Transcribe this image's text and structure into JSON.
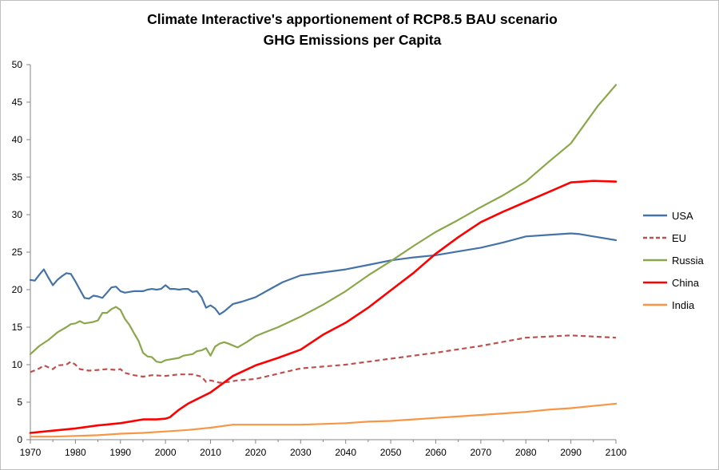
{
  "chart_data": {
    "type": "line",
    "title": "Climate Interactive's apportionement of RCP8.5 BAU scenario",
    "subtitle": "GHG Emissions per Capita",
    "xlabel": "",
    "ylabel": "",
    "xlim": [
      1970,
      2100
    ],
    "ylim": [
      0,
      50
    ],
    "xticks": [
      1970,
      1980,
      1990,
      2000,
      2010,
      2020,
      2030,
      2040,
      2050,
      2060,
      2070,
      2080,
      2090,
      2100
    ],
    "yticks": [
      0,
      5,
      10,
      15,
      20,
      25,
      30,
      35,
      40,
      45,
      50
    ],
    "grid": false,
    "legend_position": "right",
    "series": [
      {
        "name": "USA",
        "color": "#4572a7",
        "style": "solid",
        "points": [
          [
            1970,
            21.3
          ],
          [
            1971,
            21.2
          ],
          [
            1972,
            22
          ],
          [
            1973,
            22.7
          ],
          [
            1974,
            21.6
          ],
          [
            1975,
            20.6
          ],
          [
            1976,
            21.3
          ],
          [
            1977,
            21.8
          ],
          [
            1978,
            22.2
          ],
          [
            1979,
            22.1
          ],
          [
            1980,
            21.1
          ],
          [
            1981,
            20
          ],
          [
            1982,
            18.9
          ],
          [
            1983,
            18.8
          ],
          [
            1984,
            19.2
          ],
          [
            1985,
            19.1
          ],
          [
            1986,
            18.9
          ],
          [
            1987,
            19.6
          ],
          [
            1988,
            20.3
          ],
          [
            1989,
            20.4
          ],
          [
            1990,
            19.8
          ],
          [
            1991,
            19.6
          ],
          [
            1992,
            19.7
          ],
          [
            1993,
            19.8
          ],
          [
            1994,
            19.8
          ],
          [
            1995,
            19.8
          ],
          [
            1996,
            20
          ],
          [
            1997,
            20.1
          ],
          [
            1998,
            20
          ],
          [
            1999,
            20.1
          ],
          [
            2000,
            20.6
          ],
          [
            2001,
            20.1
          ],
          [
            2002,
            20.1
          ],
          [
            2003,
            20
          ],
          [
            2004,
            20.1
          ],
          [
            2005,
            20.1
          ],
          [
            2006,
            19.7
          ],
          [
            2007,
            19.8
          ],
          [
            2008,
            19
          ],
          [
            2009,
            17.6
          ],
          [
            2010,
            17.9
          ],
          [
            2011,
            17.5
          ],
          [
            2012,
            16.7
          ],
          [
            2013,
            17.1
          ],
          [
            2014,
            17.6
          ],
          [
            2015,
            18.1
          ],
          [
            2017,
            18.4
          ],
          [
            2020,
            19
          ],
          [
            2023,
            20
          ],
          [
            2026,
            21
          ],
          [
            2030,
            21.9
          ],
          [
            2035,
            22.3
          ],
          [
            2040,
            22.7
          ],
          [
            2045,
            23.3
          ],
          [
            2050,
            23.9
          ],
          [
            2055,
            24.3
          ],
          [
            2060,
            24.6
          ],
          [
            2065,
            25.1
          ],
          [
            2070,
            25.6
          ],
          [
            2075,
            26.3
          ],
          [
            2080,
            27.1
          ],
          [
            2085,
            27.3
          ],
          [
            2090,
            27.5
          ],
          [
            2092,
            27.4
          ],
          [
            2095,
            27.1
          ],
          [
            2100,
            26.6
          ]
        ]
      },
      {
        "name": "EU",
        "color": "#c0504d",
        "style": "dashed",
        "points": [
          [
            1970,
            9
          ],
          [
            1972,
            9.5
          ],
          [
            1973,
            9.9
          ],
          [
            1975,
            9.4
          ],
          [
            1976,
            9.9
          ],
          [
            1978,
            10
          ],
          [
            1979,
            10.4
          ],
          [
            1980,
            10
          ],
          [
            1981,
            9.4
          ],
          [
            1983,
            9.2
          ],
          [
            1985,
            9.3
          ],
          [
            1987,
            9.4
          ],
          [
            1989,
            9.3
          ],
          [
            1990,
            9.4
          ],
          [
            1991,
            8.9
          ],
          [
            1993,
            8.6
          ],
          [
            1995,
            8.4
          ],
          [
            1997,
            8.6
          ],
          [
            2000,
            8.5
          ],
          [
            2003,
            8.7
          ],
          [
            2006,
            8.7
          ],
          [
            2008,
            8.4
          ],
          [
            2009,
            7.7
          ],
          [
            2010,
            7.9
          ],
          [
            2012,
            7.6
          ],
          [
            2014,
            7.7
          ],
          [
            2016,
            7.9
          ],
          [
            2020,
            8.1
          ],
          [
            2025,
            8.8
          ],
          [
            2030,
            9.5
          ],
          [
            2040,
            10
          ],
          [
            2050,
            10.8
          ],
          [
            2060,
            11.6
          ],
          [
            2070,
            12.5
          ],
          [
            2080,
            13.6
          ],
          [
            2090,
            13.9
          ],
          [
            2100,
            13.6
          ]
        ]
      },
      {
        "name": "Russia",
        "color": "#8aa84b",
        "style": "solid",
        "points": [
          [
            1970,
            11.4
          ],
          [
            1972,
            12.5
          ],
          [
            1974,
            13.3
          ],
          [
            1976,
            14.3
          ],
          [
            1978,
            15
          ],
          [
            1979,
            15.4
          ],
          [
            1980,
            15.5
          ],
          [
            1981,
            15.8
          ],
          [
            1982,
            15.5
          ],
          [
            1984,
            15.7
          ],
          [
            1985,
            15.9
          ],
          [
            1986,
            16.9
          ],
          [
            1987,
            16.9
          ],
          [
            1988,
            17.4
          ],
          [
            1989,
            17.7
          ],
          [
            1990,
            17.3
          ],
          [
            1991,
            16.1
          ],
          [
            1992,
            15.3
          ],
          [
            1993,
            14.2
          ],
          [
            1994,
            13.2
          ],
          [
            1995,
            11.6
          ],
          [
            1996,
            11.1
          ],
          [
            1997,
            11
          ],
          [
            1998,
            10.4
          ],
          [
            1999,
            10.3
          ],
          [
            2000,
            10.6
          ],
          [
            2001,
            10.7
          ],
          [
            2003,
            10.9
          ],
          [
            2004,
            11.2
          ],
          [
            2006,
            11.4
          ],
          [
            2007,
            11.8
          ],
          [
            2008,
            11.9
          ],
          [
            2009,
            12.2
          ],
          [
            2010,
            11.2
          ],
          [
            2011,
            12.4
          ],
          [
            2012,
            12.8
          ],
          [
            2013,
            13
          ],
          [
            2014,
            12.8
          ],
          [
            2016,
            12.3
          ],
          [
            2018,
            13
          ],
          [
            2020,
            13.8
          ],
          [
            2022,
            14.3
          ],
          [
            2025,
            15
          ],
          [
            2030,
            16.4
          ],
          [
            2035,
            18
          ],
          [
            2040,
            19.8
          ],
          [
            2045,
            21.9
          ],
          [
            2050,
            23.8
          ],
          [
            2055,
            25.8
          ],
          [
            2060,
            27.7
          ],
          [
            2065,
            29.3
          ],
          [
            2070,
            31
          ],
          [
            2075,
            32.6
          ],
          [
            2080,
            34.4
          ],
          [
            2085,
            37
          ],
          [
            2090,
            39.5
          ],
          [
            2093,
            42
          ],
          [
            2096,
            44.5
          ],
          [
            2100,
            47.3
          ]
        ]
      },
      {
        "name": "China",
        "color": "#ff0000",
        "style": "solid",
        "points": [
          [
            1970,
            0.9
          ],
          [
            1975,
            1.2
          ],
          [
            1980,
            1.5
          ],
          [
            1985,
            1.9
          ],
          [
            1990,
            2.2
          ],
          [
            1995,
            2.7
          ],
          [
            1998,
            2.7
          ],
          [
            2000,
            2.8
          ],
          [
            2001,
            3
          ],
          [
            2003,
            4
          ],
          [
            2005,
            4.8
          ],
          [
            2007,
            5.4
          ],
          [
            2010,
            6.3
          ],
          [
            2015,
            8.5
          ],
          [
            2020,
            9.9
          ],
          [
            2025,
            10.9
          ],
          [
            2030,
            12
          ],
          [
            2035,
            14
          ],
          [
            2040,
            15.6
          ],
          [
            2045,
            17.6
          ],
          [
            2050,
            19.9
          ],
          [
            2055,
            22.2
          ],
          [
            2060,
            24.8
          ],
          [
            2065,
            27
          ],
          [
            2070,
            29
          ],
          [
            2075,
            30.4
          ],
          [
            2080,
            31.7
          ],
          [
            2085,
            33
          ],
          [
            2090,
            34.3
          ],
          [
            2095,
            34.5
          ],
          [
            2100,
            34.4
          ]
        ]
      },
      {
        "name": "India",
        "color": "#f79646",
        "style": "solid",
        "points": [
          [
            1970,
            0.4
          ],
          [
            1975,
            0.4
          ],
          [
            1980,
            0.5
          ],
          [
            1985,
            0.6
          ],
          [
            1990,
            0.8
          ],
          [
            1995,
            0.9
          ],
          [
            2000,
            1.1
          ],
          [
            2005,
            1.3
          ],
          [
            2010,
            1.6
          ],
          [
            2015,
            2
          ],
          [
            2020,
            2
          ],
          [
            2025,
            2
          ],
          [
            2030,
            2
          ],
          [
            2035,
            2.1
          ],
          [
            2040,
            2.2
          ],
          [
            2045,
            2.4
          ],
          [
            2050,
            2.5
          ],
          [
            2055,
            2.7
          ],
          [
            2060,
            2.9
          ],
          [
            2065,
            3.1
          ],
          [
            2070,
            3.3
          ],
          [
            2075,
            3.5
          ],
          [
            2080,
            3.7
          ],
          [
            2085,
            4
          ],
          [
            2090,
            4.2
          ],
          [
            2095,
            4.5
          ],
          [
            2100,
            4.8
          ]
        ]
      }
    ]
  }
}
